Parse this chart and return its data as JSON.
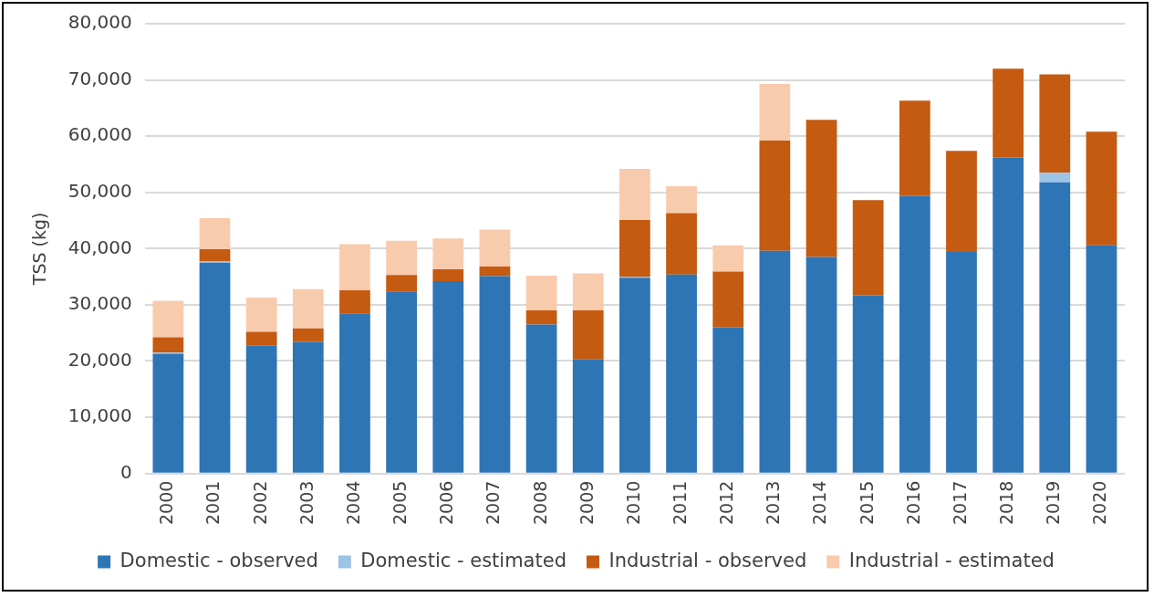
{
  "chart_data": {
    "type": "bar",
    "stacked": true,
    "ylabel": "TSS (kg)",
    "categories": [
      "2000",
      "2001",
      "2002",
      "2003",
      "2004",
      "2005",
      "2006",
      "2007",
      "2008",
      "2009",
      "2010",
      "2011",
      "2012",
      "2013",
      "2014",
      "2015",
      "2016",
      "2017",
      "2018",
      "2019",
      "2020"
    ],
    "series": [
      {
        "name": "Domestic - observed",
        "color": "#2e75b6",
        "values": [
          21300,
          37500,
          22700,
          23400,
          28500,
          32400,
          34200,
          35100,
          26500,
          20300,
          34800,
          35400,
          26000,
          39600,
          38500,
          31700,
          49400,
          39400,
          56200,
          51800,
          40600
        ]
      },
      {
        "name": "Domestic - estimated",
        "color": "#9dc3e6",
        "values": [
          200,
          200,
          0,
          0,
          0,
          0,
          0,
          0,
          0,
          0,
          200,
          0,
          0,
          0,
          0,
          0,
          0,
          0,
          0,
          1700,
          0
        ]
      },
      {
        "name": "Industrial - observed",
        "color": "#c55a11",
        "values": [
          2700,
          2200,
          2500,
          2400,
          4100,
          2900,
          2100,
          1700,
          2500,
          8700,
          10100,
          10900,
          9900,
          19600,
          24400,
          16900,
          16900,
          18000,
          15800,
          17500,
          20200
        ]
      },
      {
        "name": "Industrial - estimated",
        "color": "#f8cbad",
        "values": [
          6500,
          5500,
          6100,
          7000,
          8200,
          6100,
          5500,
          6600,
          6200,
          6600,
          9100,
          4800,
          4700,
          10100,
          0,
          0,
          0,
          0,
          0,
          0,
          0
        ]
      }
    ],
    "ylim": [
      0,
      80000
    ],
    "yticks": [
      0,
      {
        "value": 10000,
        "label": "10,000"
      },
      {
        "value": 20000,
        "label": "20,000"
      },
      {
        "value": 30000,
        "label": "30,000"
      },
      {
        "value": 40000,
        "label": "40,000"
      },
      {
        "value": 50000,
        "label": "50,000"
      },
      {
        "value": 60000,
        "label": "60,000"
      },
      {
        "value": 70000,
        "label": "70,000"
      },
      {
        "value": 80000,
        "label": "80,000"
      }
    ],
    "grid": "y",
    "legend": "bottom"
  }
}
